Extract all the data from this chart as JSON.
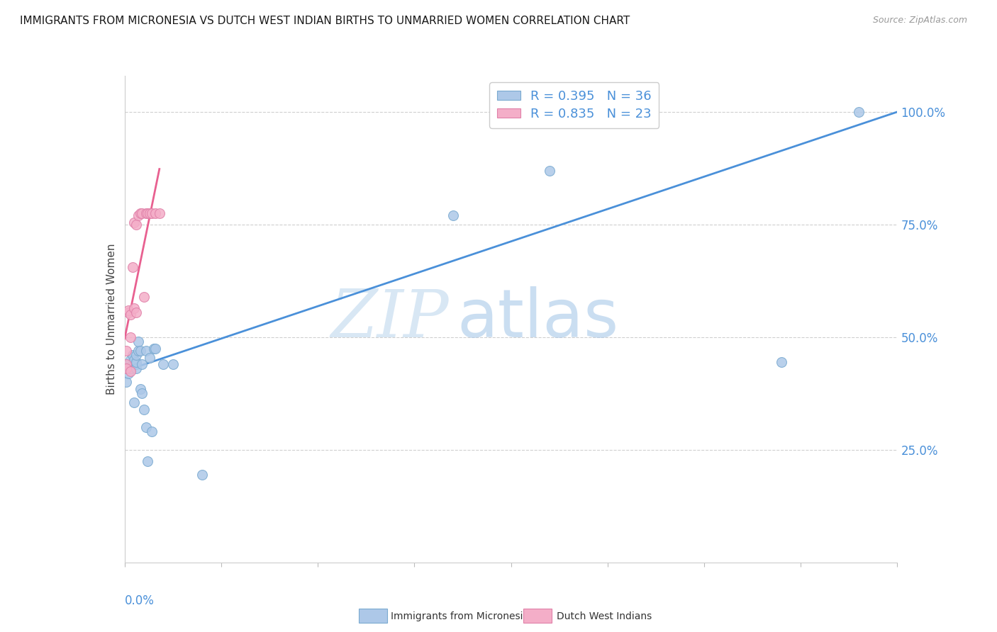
{
  "title": "IMMIGRANTS FROM MICRONESIA VS DUTCH WEST INDIAN BIRTHS TO UNMARRIED WOMEN CORRELATION CHART",
  "source": "Source: ZipAtlas.com",
  "ylabel": "Births to Unmarried Women",
  "ytick_values": [
    0.25,
    0.5,
    0.75,
    1.0
  ],
  "xmin": 0.0,
  "xmax": 0.4,
  "ymin": 0.0,
  "ymax": 1.08,
  "blue_R": "0.395",
  "blue_N": "36",
  "pink_R": "0.835",
  "pink_N": "23",
  "blue_color": "#adc8e8",
  "pink_color": "#f4aec8",
  "blue_line_color": "#4a90d9",
  "pink_line_color": "#e86090",
  "legend_label_blue": "Immigrants from Micronesia",
  "legend_label_pink": "Dutch West Indians",
  "watermark_zip": "ZIP",
  "watermark_atlas": "atlas",
  "blue_points_x": [
    0.001,
    0.001,
    0.002,
    0.002,
    0.003,
    0.003,
    0.004,
    0.004,
    0.005,
    0.005,
    0.005,
    0.006,
    0.006,
    0.006,
    0.006,
    0.007,
    0.007,
    0.008,
    0.008,
    0.009,
    0.009,
    0.01,
    0.011,
    0.011,
    0.012,
    0.013,
    0.014,
    0.015,
    0.016,
    0.02,
    0.025,
    0.04,
    0.17,
    0.22,
    0.34,
    0.38
  ],
  "blue_points_y": [
    0.43,
    0.4,
    0.44,
    0.42,
    0.43,
    0.45,
    0.44,
    0.46,
    0.355,
    0.44,
    0.45,
    0.44,
    0.43,
    0.445,
    0.46,
    0.47,
    0.49,
    0.47,
    0.385,
    0.375,
    0.44,
    0.34,
    0.3,
    0.47,
    0.225,
    0.455,
    0.29,
    0.475,
    0.475,
    0.44,
    0.44,
    0.195,
    0.77,
    0.87,
    0.445,
    1.0
  ],
  "pink_points_x": [
    0.001,
    0.001,
    0.001,
    0.002,
    0.002,
    0.003,
    0.003,
    0.003,
    0.004,
    0.005,
    0.005,
    0.006,
    0.006,
    0.007,
    0.008,
    0.009,
    0.01,
    0.011,
    0.012,
    0.013,
    0.014,
    0.016,
    0.018
  ],
  "pink_points_y": [
    0.44,
    0.43,
    0.47,
    0.555,
    0.56,
    0.425,
    0.5,
    0.55,
    0.655,
    0.565,
    0.755,
    0.75,
    0.555,
    0.77,
    0.775,
    0.775,
    0.59,
    0.775,
    0.775,
    0.775,
    0.775,
    0.775,
    0.775
  ],
  "blue_line_x": [
    0.0,
    0.4
  ],
  "blue_line_y": [
    0.425,
    1.0
  ],
  "pink_line_x0": 0.0,
  "pink_line_x1": 0.018,
  "grid_color": "#d0d0d0",
  "grid_style": "--",
  "spine_color": "#cccccc"
}
